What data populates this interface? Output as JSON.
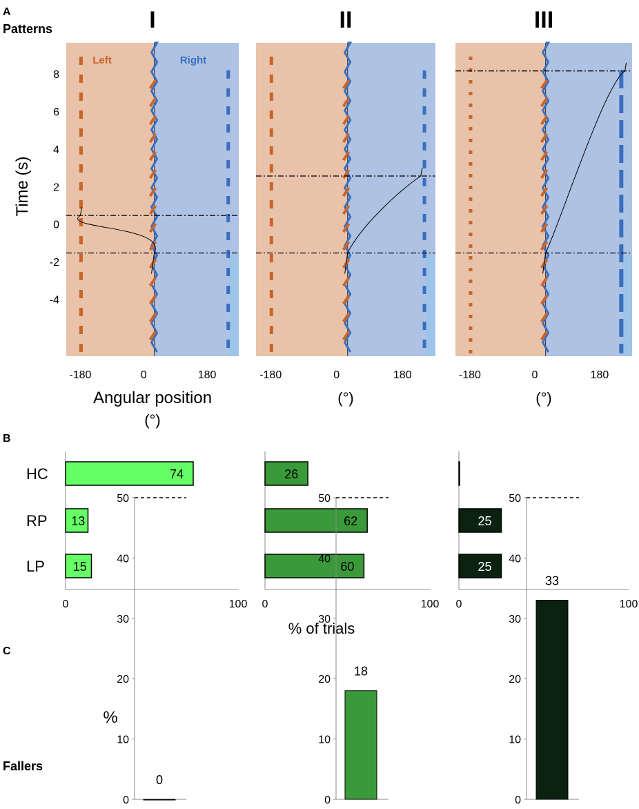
{
  "panel_labels": {
    "a": "A",
    "b": "B",
    "c": "C"
  },
  "row_labels": {
    "patterns": "Patterns",
    "fallers": "Fallers"
  },
  "chart_data": [
    {
      "type": "line",
      "panel": "A",
      "columns": [
        "I",
        "II",
        "III"
      ],
      "ylabel": "Time (s)",
      "yticks": [
        "8",
        "6",
        "4",
        "2",
        "0",
        "-2",
        "-4"
      ],
      "ytick_values": [
        8,
        6,
        4,
        2,
        0,
        -2,
        -4
      ],
      "ylim": [
        -7,
        9.7
      ],
      "xlim": [
        -220,
        270
      ],
      "xtick_values": [
        -180,
        0,
        180
      ],
      "xticks": [
        "-180",
        "0",
        "180"
      ],
      "xlabels": [
        "Angular position\n(°)",
        "(°)",
        "(°)"
      ],
      "region_labels": {
        "left": "Left",
        "right": "Right"
      },
      "colors": {
        "left_region": "#e9c2aa",
        "right_region": "#aec2e4",
        "left_marks": "#c8652a",
        "right_marks": "#3a6fbf",
        "end_strip": "#9ec4ea",
        "trajectory": "#000000"
      },
      "event_lines_s": [
        [
          0.5,
          -1.5
        ],
        [
          2.6,
          -1.5
        ],
        [
          8.2,
          -1.5
        ]
      ],
      "trajectory_end_deg": [
        -180,
        230,
        250
      ]
    },
    {
      "type": "bar",
      "panel": "B",
      "orientation": "horizontal",
      "categories": [
        "HC",
        "RP",
        "LP"
      ],
      "xlabel": "% of trials",
      "xlim": [
        0,
        100
      ],
      "xticks": [
        "0",
        "100"
      ],
      "series": [
        {
          "name": "I",
          "values": [
            74,
            13,
            15
          ],
          "labels": [
            "74",
            "13",
            "15"
          ],
          "color": "#66ff66",
          "text_color": "#000000"
        },
        {
          "name": "II",
          "values": [
            26,
            62,
            60
          ],
          "labels": [
            "26",
            "62",
            "60"
          ],
          "color": "#3a9a3a",
          "text_color": "#000000"
        },
        {
          "name": "III",
          "values": [
            0,
            25,
            25
          ],
          "labels": [
            "",
            "25",
            "25"
          ],
          "color": "#0b2211",
          "text_color": "#ffffff"
        }
      ]
    },
    {
      "type": "bar",
      "panel": "C",
      "ylabel": "%",
      "ylim": [
        0,
        50
      ],
      "yticks": [
        "0",
        "10",
        "20",
        "30",
        "40",
        "50"
      ],
      "reference_line": 50,
      "series": [
        {
          "name": "I",
          "value": 0,
          "label": "0",
          "color": "#66ff66"
        },
        {
          "name": "II",
          "value": 18,
          "label": "18",
          "color": "#3a9a3a"
        },
        {
          "name": "III",
          "value": 33,
          "label": "33",
          "color": "#0b2211"
        }
      ]
    }
  ]
}
